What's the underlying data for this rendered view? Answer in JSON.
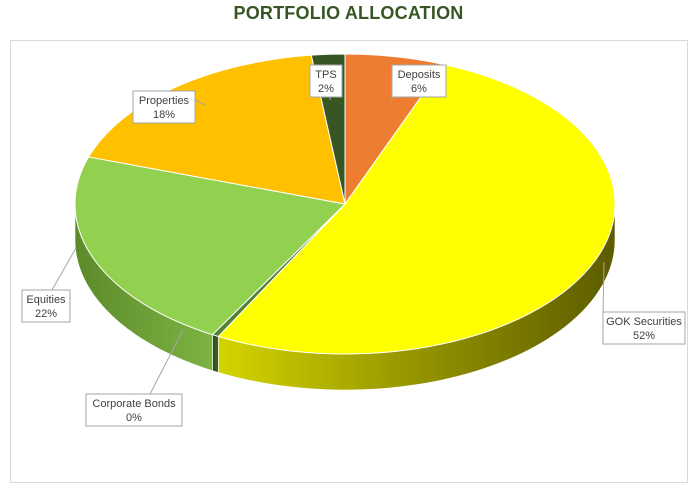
{
  "chart_data": {
    "type": "pie",
    "title": "PORTFOLIO ALLOCATION",
    "slices": [
      {
        "name": "Deposits",
        "value": 6,
        "label_pct": "6%",
        "color": "#ed7d31"
      },
      {
        "name": "GOK Securities",
        "value": 52,
        "label_pct": "52%",
        "color": "#ffff00"
      },
      {
        "name": "Corporate Bonds",
        "value": 0.4,
        "label_pct": "0%",
        "color": "#548235"
      },
      {
        "name": "Equities",
        "value": 22,
        "label_pct": "22%",
        "color": "#92d050"
      },
      {
        "name": "Properties",
        "value": 18,
        "label_pct": "18%",
        "color": "#ffc000"
      },
      {
        "name": "TPS",
        "value": 2,
        "label_pct": "2%",
        "color": "#375623"
      }
    ],
    "style": "3d-pie",
    "legend": "none",
    "title_color": "#375623"
  }
}
